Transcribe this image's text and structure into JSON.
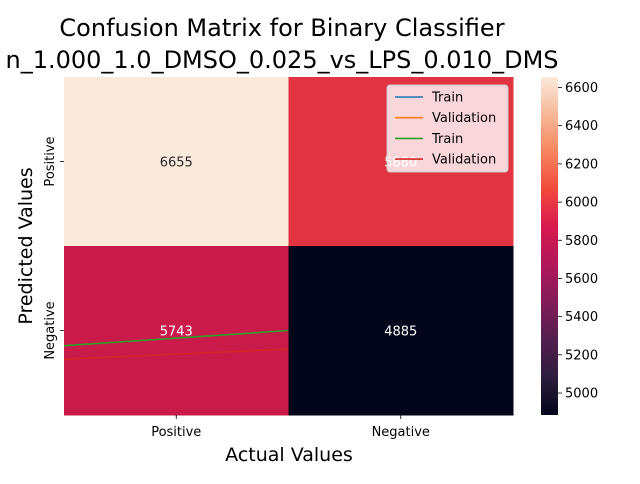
{
  "chart_data": {
    "type": "heatmap",
    "title": "Confusion Matrix for Binary Classifier",
    "subtitle": "n_1.000_1.0_DMSO_0.025_vs_LPS_0.010_DMS",
    "xlabel": "Actual Values",
    "ylabel": "Predicted Values",
    "x_categories": [
      "Positive",
      "Negative"
    ],
    "y_categories": [
      "Positive",
      "Negative"
    ],
    "cells": [
      {
        "row": 0,
        "col": 0,
        "value": 6655,
        "label": "6655",
        "color": "#faeadb",
        "text_color": "#262626"
      },
      {
        "row": 0,
        "col": 1,
        "value": 5880,
        "label": "5880",
        "color": "#e13342",
        "text_color": "#ffffff"
      },
      {
        "row": 1,
        "col": 0,
        "value": 5743,
        "label": "5743",
        "color": "#c91a4a",
        "text_color": "#ffffff"
      },
      {
        "row": 1,
        "col": 1,
        "value": 4885,
        "label": "4885",
        "color": "#03051a",
        "text_color": "#ffffff"
      }
    ],
    "colorbar": {
      "range": [
        4885,
        6655
      ],
      "ticks": [
        5000,
        5200,
        5400,
        5600,
        5800,
        6000,
        6200,
        6400,
        6600
      ],
      "stops": [
        "#03051a",
        "#2c1e3e",
        "#531e4d",
        "#821c59",
        "#b01759",
        "#d7194f",
        "#f2483c",
        "#f6855f",
        "#f7b797",
        "#faeadb"
      ]
    },
    "legend": {
      "placement": "top-right",
      "entries": [
        {
          "name": "Train",
          "color": "#1f77b4"
        },
        {
          "name": "Validation",
          "color": "#ff7f0e"
        },
        {
          "name": "Train",
          "color": "#2ca02c"
        },
        {
          "name": "Validation",
          "color": "#d62728"
        }
      ]
    },
    "overlay_lines": [
      {
        "series": "Train",
        "color": "#2ca02c",
        "x": [
          0,
          1
        ],
        "y": [
          1.59,
          1.5
        ]
      },
      {
        "series": "Validation",
        "color": "#d62728",
        "x": [
          0,
          1
        ],
        "y": [
          1.67,
          1.61
        ]
      }
    ],
    "grid": false
  }
}
